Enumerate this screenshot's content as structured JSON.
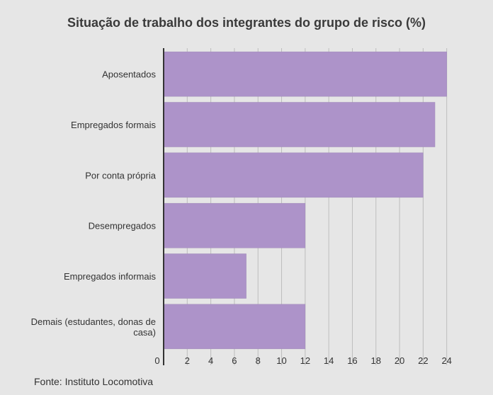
{
  "chart_data": {
    "type": "bar",
    "orientation": "horizontal",
    "title": "Situação de trabalho dos integrantes do grupo de risco (%)",
    "categories": [
      "Aposentados",
      "Empregados formais",
      "Por conta própria",
      "Desempregados",
      "Empregados informais",
      [
        "Demais (estudantes, donas de",
        "casa)"
      ]
    ],
    "values": [
      24,
      23,
      22,
      12,
      7,
      12
    ],
    "xlim": [
      0,
      24.8
    ],
    "xticks": [
      0,
      2,
      4,
      6,
      8,
      10,
      12,
      14,
      16,
      18,
      20,
      22,
      24
    ],
    "grid": true,
    "bar_color": "#ad93c9"
  },
  "source": "Fonte: Instituto Locomotiva"
}
